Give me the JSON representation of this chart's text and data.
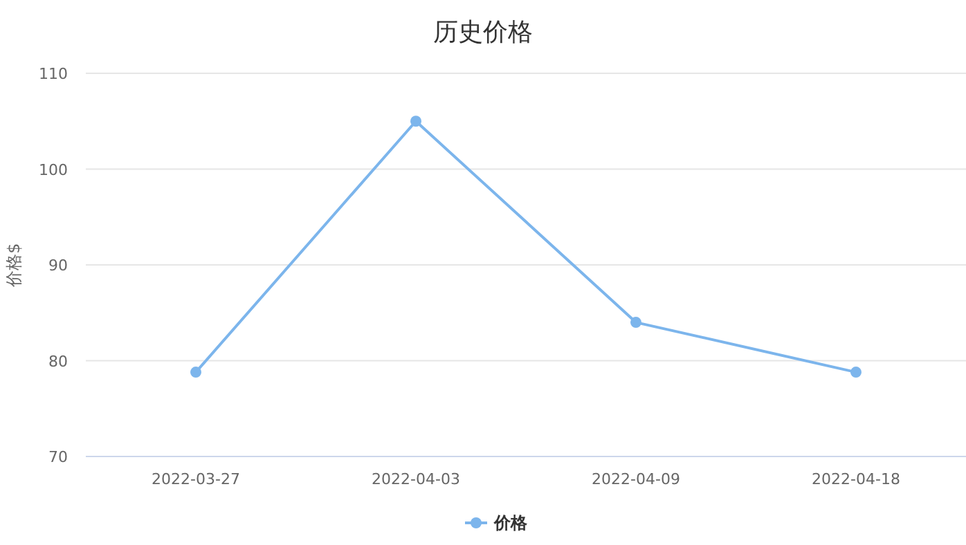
{
  "chart_data": {
    "type": "line",
    "title": "历史价格",
    "ylabel": "价格$",
    "categories": [
      "2022-03-27",
      "2022-04-03",
      "2022-04-09",
      "2022-04-18"
    ],
    "series": [
      {
        "name": "价格",
        "color": "#7cb5ec",
        "values": [
          78.8,
          105,
          84.0,
          78.8
        ]
      }
    ],
    "ylim": [
      70,
      110
    ],
    "yticks": [
      70,
      80,
      90,
      100,
      110
    ],
    "grid": "y",
    "legend": "bottom",
    "marker": "circle",
    "line_style": "solid"
  }
}
